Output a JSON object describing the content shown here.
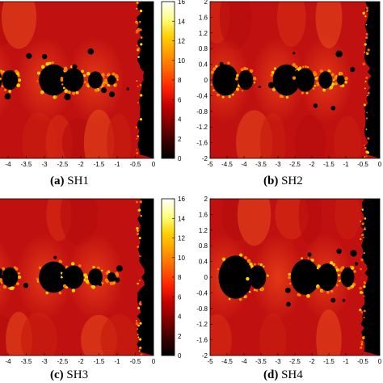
{
  "colors": {
    "region_black": "#000000",
    "region_red": "#c01010",
    "region_orange": "#e04018",
    "colormap": [
      "#000000",
      "#3a0000",
      "#800000",
      "#c00000",
      "#ff2000",
      "#ff6000",
      "#ff9a00",
      "#ffd000",
      "#ffff80",
      "#ffffff"
    ]
  },
  "captions": [
    {
      "tag": "(a)",
      "text": "SH1"
    },
    {
      "tag": "(b)",
      "text": "SH2"
    },
    {
      "tag": "(c)",
      "text": "SH3"
    },
    {
      "tag": "(d)",
      "text": "SH4"
    }
  ],
  "chart_data": [
    {
      "type": "heatmap",
      "panel": "(a) SH1",
      "x_ticks": [
        "-5",
        "-4.5",
        "-4",
        "-3.5",
        "-3",
        "-2.5",
        "-2",
        "-1.5",
        "-1",
        "-0.5",
        "0"
      ],
      "xlim": [
        -5,
        0
      ],
      "y_ticks": [],
      "ylim": [
        -2,
        2
      ],
      "colorbar": {
        "ticks": [
          "0",
          "2",
          "4",
          "6",
          "8",
          "10",
          "12",
          "14",
          "16"
        ],
        "range": [
          0,
          16
        ]
      },
      "grid": false
    },
    {
      "type": "heatmap",
      "panel": "(b) SH2",
      "x_ticks": [
        "-5",
        "-4.5",
        "-4",
        "-3.5",
        "-3",
        "-2.5",
        "-2",
        "-1.5",
        "-1",
        "-0.5",
        "0"
      ],
      "xlim": [
        -5,
        0
      ],
      "y_ticks": [
        "2",
        "1.6",
        "1.2",
        "0.8",
        "0.4",
        "0",
        "-0.4",
        "-0.8",
        "-1.2",
        "-1.6",
        "-2"
      ],
      "ylim": [
        -2,
        2
      ],
      "grid": false
    },
    {
      "type": "heatmap",
      "panel": "(c) SH3",
      "x_ticks": [
        "-5",
        "-4.5",
        "-4",
        "-3.5",
        "-3",
        "-2.5",
        "-2",
        "-1.5",
        "-1",
        "-0.5",
        "0"
      ],
      "xlim": [
        -5,
        0
      ],
      "y_ticks": [],
      "ylim": [
        -2,
        2
      ],
      "colorbar": {
        "ticks": [
          "0",
          "2",
          "4",
          "6",
          "8",
          "10",
          "12",
          "14",
          "16"
        ],
        "range": [
          0,
          16
        ]
      },
      "grid": false
    },
    {
      "type": "heatmap",
      "panel": "(d) SH4",
      "x_ticks": [
        "-5",
        "-4.5",
        "-4",
        "-3.5",
        "-3",
        "-2.5",
        "-2",
        "-1.5",
        "-1",
        "-0.5",
        "0"
      ],
      "xlim": [
        -5,
        0
      ],
      "y_ticks": [
        "2",
        "1.6",
        "1.2",
        "0.8",
        "0.4",
        "0",
        "-0.4",
        "-0.8",
        "-1.2",
        "-1.6",
        "-2"
      ],
      "ylim": [
        -2,
        2
      ],
      "grid": false
    }
  ]
}
